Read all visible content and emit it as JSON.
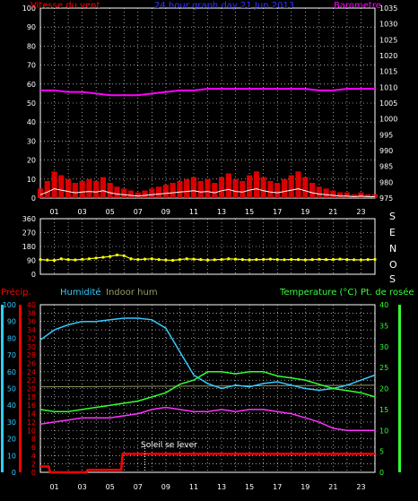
{
  "header": {
    "left_label": "Vitesse du vent",
    "title": "24 hour graph day 21 Jun 2013",
    "right_label": "Barometre"
  },
  "colors": {
    "wind": "#ff0000",
    "gust": "#ffffff",
    "barometer": "#ff00ff",
    "direction": "#ffff00",
    "precip": "#ff0000",
    "humidity": "#33ccff",
    "indoor_hum": "#999966",
    "temperature": "#33ff33",
    "dewpoint": "#ff33ff",
    "sun": "#ff0000",
    "grid": "#ffffff",
    "axis_text": "#ffffff"
  },
  "time_labels": [
    "01",
    "03",
    "05",
    "07",
    "09",
    "11",
    "13",
    "15",
    "17",
    "19",
    "21",
    "23"
  ],
  "compass_letters": [
    "S",
    "E",
    "N",
    "O",
    "S"
  ],
  "bottom_header": {
    "precip": "Précip.",
    "humidity": "Humidité",
    "indoor_hum": "Indoor hum",
    "temperature": "Temperature (°C)",
    "dewpoint": "Pt. de rosée"
  },
  "sun_label": "Soleil se lever",
  "chart_data": [
    {
      "type": "line",
      "name": "wind",
      "x_label": "hour",
      "y_label": "Vitesse du vent",
      "ylim_left": [
        0,
        100
      ],
      "left_ticks": [
        0,
        10,
        20,
        30,
        40,
        50,
        60,
        70,
        80,
        90,
        100
      ],
      "ylim_right": [
        975,
        1035
      ],
      "right_ticks": [
        975,
        980,
        985,
        990,
        995,
        1000,
        1005,
        1010,
        1015,
        1020,
        1025,
        1030,
        1035
      ],
      "series": [
        {
          "name": "Vitesse du vent",
          "axis": "left",
          "x": [
            0,
            0.5,
            1,
            1.5,
            2,
            2.5,
            3,
            3.5,
            4,
            4.5,
            5,
            5.5,
            6,
            6.5,
            7,
            7.5,
            8,
            8.5,
            9,
            9.5,
            10,
            10.5,
            11,
            11.5,
            12,
            12.5,
            13,
            13.5,
            14,
            14.5,
            15,
            15.5,
            16,
            16.5,
            17,
            17.5,
            18,
            18.5,
            19,
            19.5,
            20,
            20.5,
            21,
            21.5,
            22,
            22.5,
            23,
            23.5,
            24
          ],
          "values": [
            5,
            9,
            14,
            12,
            10,
            8,
            9,
            10,
            9,
            11,
            8,
            6,
            5,
            4,
            3,
            4,
            5,
            6,
            7,
            8,
            9,
            10,
            11,
            9,
            10,
            8,
            11,
            13,
            10,
            9,
            12,
            14,
            11,
            9,
            8,
            10,
            12,
            14,
            11,
            8,
            6,
            5,
            4,
            3,
            3,
            2,
            3,
            2,
            2
          ]
        },
        {
          "name": "Barometre",
          "axis": "right",
          "x": [
            0,
            1,
            2,
            3,
            4,
            5,
            6,
            7,
            8,
            9,
            10,
            11,
            12,
            13,
            14,
            15,
            16,
            17,
            18,
            19,
            20,
            21,
            22,
            23,
            24
          ],
          "values": [
            1009,
            1009,
            1008.5,
            1008.5,
            1008,
            1007.5,
            1007.5,
            1007.5,
            1008,
            1008.5,
            1009,
            1009,
            1009.5,
            1009.5,
            1009.5,
            1009.5,
            1009.5,
            1009.5,
            1009.5,
            1009.5,
            1009,
            1009,
            1009.5,
            1009.5,
            1009.5
          ]
        }
      ]
    },
    {
      "type": "scatter",
      "name": "wind_direction",
      "ylim": [
        0,
        360
      ],
      "ticks": [
        0,
        90,
        180,
        270,
        360
      ],
      "x": [
        0,
        0.5,
        1,
        1.5,
        2,
        2.5,
        3,
        3.5,
        4,
        4.5,
        5,
        5.5,
        6,
        6.5,
        7,
        7.5,
        8,
        8.5,
        9,
        9.5,
        10,
        10.5,
        11,
        11.5,
        12,
        12.5,
        13,
        13.5,
        14,
        14.5,
        15,
        15.5,
        16,
        16.5,
        17,
        17.5,
        18,
        18.5,
        19,
        19.5,
        20,
        20.5,
        21,
        21.5,
        22,
        22.5,
        23,
        23.5,
        24
      ],
      "values": [
        95,
        92,
        90,
        100,
        95,
        93,
        97,
        100,
        105,
        110,
        115,
        125,
        120,
        100,
        95,
        98,
        100,
        95,
        92,
        90,
        95,
        100,
        98,
        95,
        92,
        94,
        96,
        100,
        98,
        95,
        93,
        95,
        96,
        98,
        95,
        94,
        96,
        95,
        93,
        95,
        97,
        95,
        96,
        98,
        95,
        94,
        93,
        95,
        96
      ]
    },
    {
      "type": "line",
      "name": "humidity_temperature",
      "ylim_precip": [
        0,
        20
      ],
      "precip_ticks": [
        0,
        2,
        4,
        6,
        8,
        10,
        12,
        14,
        16,
        18,
        20,
        22,
        24,
        26,
        28,
        30,
        32,
        34,
        36,
        38,
        40
      ],
      "humidity_ticks": [
        0,
        10,
        20,
        30,
        40,
        50,
        60,
        70,
        80,
        90,
        100
      ],
      "ylim_temp": [
        0,
        40
      ],
      "temp_ticks": [
        0,
        5,
        10,
        15,
        20,
        25,
        30,
        35,
        40
      ],
      "series": [
        {
          "name": "Humidité",
          "axis": "humidity",
          "x": [
            0,
            1,
            2,
            3,
            4,
            5,
            6,
            7,
            8,
            9,
            10,
            11,
            12,
            13,
            14,
            15,
            16,
            17,
            18,
            19,
            20,
            21,
            22,
            23,
            24
          ],
          "values": [
            79,
            85,
            88,
            90,
            90,
            91,
            92,
            92,
            91,
            86,
            72,
            58,
            53,
            50,
            52,
            51,
            53,
            54,
            52,
            50,
            49,
            50,
            52,
            55,
            58
          ]
        },
        {
          "name": "Indoor hum",
          "axis": "humidity",
          "x": [
            0,
            24
          ],
          "values": [
            51,
            52
          ]
        },
        {
          "name": "Temperature (°C)",
          "axis": "temp",
          "x": [
            0,
            1,
            2,
            3,
            4,
            5,
            6,
            7,
            8,
            9,
            10,
            11,
            12,
            13,
            14,
            15,
            16,
            17,
            18,
            19,
            20,
            21,
            22,
            23,
            24
          ],
          "values": [
            15,
            14.5,
            14.5,
            15,
            15.5,
            16,
            16.5,
            17,
            18,
            19,
            21,
            22,
            24,
            24,
            23.5,
            24,
            24,
            23,
            22.5,
            22,
            21,
            20,
            19.5,
            19,
            18
          ]
        },
        {
          "name": "Pt. de rosée",
          "axis": "temp",
          "x": [
            0,
            1,
            2,
            3,
            4,
            5,
            6,
            7,
            8,
            9,
            10,
            11,
            12,
            13,
            14,
            15,
            16,
            17,
            18,
            19,
            20,
            21,
            22,
            23,
            24
          ],
          "values": [
            11.5,
            12,
            12.5,
            13,
            13,
            13,
            13.5,
            14,
            15,
            15.5,
            15,
            14.5,
            14.5,
            15,
            14.5,
            15,
            15,
            14.5,
            14,
            13,
            12,
            10.5,
            10,
            10,
            10
          ]
        },
        {
          "name": "Précip.",
          "axis": "precip",
          "x": [
            0,
            0.6,
            0.7,
            3.3,
            3.4,
            5.8,
            5.9,
            24
          ],
          "values": [
            0.7,
            0.7,
            0,
            0,
            0.3,
            0.3,
            2.2,
            2.2
          ]
        }
      ]
    }
  ]
}
